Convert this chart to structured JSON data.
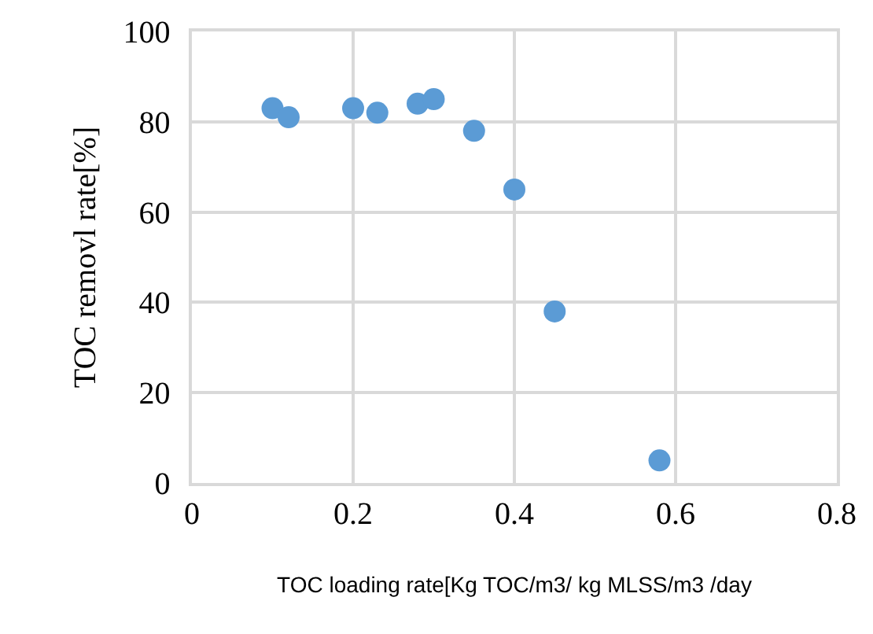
{
  "chart_data": {
    "type": "scatter",
    "xlabel": "TOC loading rate[Kg TOC/m3/ kg MLSS/m3 /day",
    "ylabel": "TOC removl rate[%]",
    "x": [
      0.1,
      0.12,
      0.2,
      0.23,
      0.28,
      0.3,
      0.35,
      0.4,
      0.45,
      0.58
    ],
    "values": [
      83,
      81,
      83,
      82,
      84,
      85,
      78,
      65,
      38,
      5
    ],
    "color": "#5b9bd5",
    "marker": "circle",
    "xlim": [
      0,
      0.8
    ],
    "xticks": [
      0,
      0.2,
      0.4,
      0.6,
      0.8
    ],
    "ylim": [
      0,
      100
    ],
    "yticks": [
      0,
      20,
      40,
      60,
      80,
      100
    ],
    "grid": true,
    "legend": false
  }
}
